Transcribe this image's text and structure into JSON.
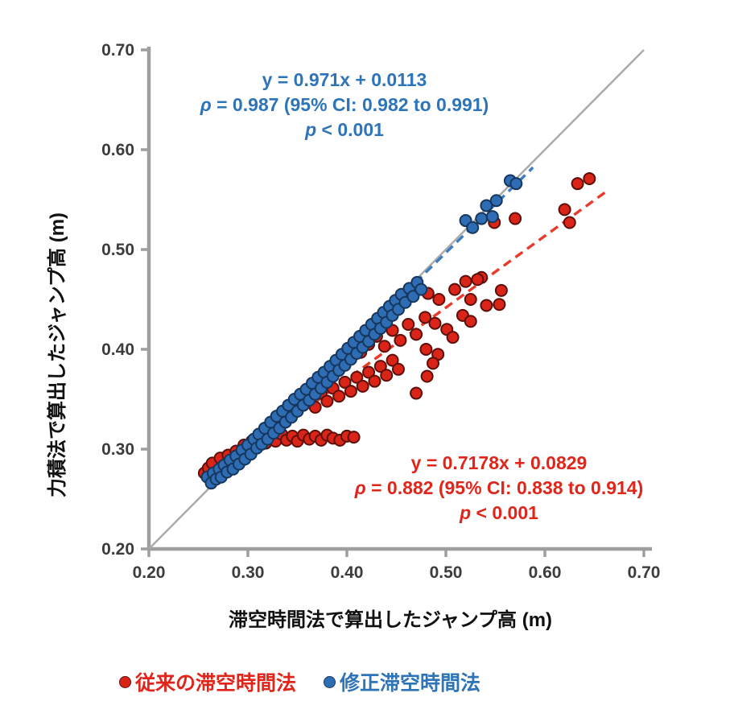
{
  "chart_data": {
    "type": "scatter",
    "title": "",
    "xlabel": "滞空時間法で算出したジャンプ高 (m)",
    "ylabel": "力積法で算出したジャンプ高 (m)",
    "xlim": [
      0.2,
      0.7
    ],
    "ylim": [
      0.2,
      0.7
    ],
    "x_tick_labels": [
      "0.20",
      "0.30",
      "0.40",
      "0.50",
      "0.60",
      "0.70"
    ],
    "y_tick_labels": [
      "0.20",
      "0.30",
      "0.40",
      "0.50",
      "0.60",
      "0.70"
    ],
    "grid": false,
    "legend_position": "bottom",
    "axis_color": "#9e9e9e",
    "tick_text_color": "#3c3c3c",
    "identity_line": {
      "from": [
        0.2,
        0.2
      ],
      "to": [
        0.7,
        0.7
      ],
      "color": "#ababab"
    },
    "annotations": {
      "blue": {
        "equation": "y = 0.971x + 0.0113",
        "rho_symbol": "ρ",
        "rho_rest": " = 0.987 (95% CI: 0.982 to 0.991)",
        "p_symbol": "p",
        "p_rest": " < 0.001",
        "color": "#2e74b8"
      },
      "red": {
        "equation": "y = 0.7178x + 0.0829",
        "rho_symbol": "ρ",
        "rho_rest": " = 0.882 (95% CI: 0.838 to 0.914)",
        "p_symbol": "p",
        "p_rest": " < 0.001",
        "color": "#e0251a"
      }
    },
    "series": [
      {
        "name": "従来の滞空時間法",
        "color": "#da2418",
        "edge_color": "#5c100a",
        "trend": {
          "slope": 0.7178,
          "intercept": 0.0829,
          "x_start": 0.262,
          "x_end": 0.663,
          "color": "#e8392a",
          "dashed": true
        },
        "points": [
          [
            0.256,
            0.276
          ],
          [
            0.26,
            0.281
          ],
          [
            0.264,
            0.286
          ],
          [
            0.268,
            0.277
          ],
          [
            0.272,
            0.291
          ],
          [
            0.276,
            0.284
          ],
          [
            0.28,
            0.294
          ],
          [
            0.284,
            0.287
          ],
          [
            0.288,
            0.298
          ],
          [
            0.292,
            0.291
          ],
          [
            0.296,
            0.304
          ],
          [
            0.3,
            0.296
          ],
          [
            0.304,
            0.308
          ],
          [
            0.308,
            0.301
          ],
          [
            0.313,
            0.311
          ],
          [
            0.318,
            0.306
          ],
          [
            0.323,
            0.313
          ],
          [
            0.328,
            0.308
          ],
          [
            0.334,
            0.315
          ],
          [
            0.339,
            0.309
          ],
          [
            0.345,
            0.313
          ],
          [
            0.35,
            0.308
          ],
          [
            0.356,
            0.314
          ],
          [
            0.362,
            0.31
          ],
          [
            0.368,
            0.313
          ],
          [
            0.374,
            0.309
          ],
          [
            0.38,
            0.314
          ],
          [
            0.386,
            0.311
          ],
          [
            0.393,
            0.309
          ],
          [
            0.4,
            0.313
          ],
          [
            0.407,
            0.312
          ],
          [
            0.335,
            0.326
          ],
          [
            0.342,
            0.332
          ],
          [
            0.349,
            0.338
          ],
          [
            0.356,
            0.344
          ],
          [
            0.362,
            0.351
          ],
          [
            0.368,
            0.342
          ],
          [
            0.374,
            0.356
          ],
          [
            0.38,
            0.348
          ],
          [
            0.386,
            0.361
          ],
          [
            0.392,
            0.353
          ],
          [
            0.398,
            0.367
          ],
          [
            0.404,
            0.358
          ],
          [
            0.41,
            0.372
          ],
          [
            0.416,
            0.363
          ],
          [
            0.422,
            0.377
          ],
          [
            0.428,
            0.368
          ],
          [
            0.434,
            0.383
          ],
          [
            0.44,
            0.374
          ],
          [
            0.446,
            0.389
          ],
          [
            0.452,
            0.38
          ],
          [
            0.414,
            0.397
          ],
          [
            0.422,
            0.405
          ],
          [
            0.43,
            0.413
          ],
          [
            0.438,
            0.403
          ],
          [
            0.446,
            0.419
          ],
          [
            0.454,
            0.409
          ],
          [
            0.462,
            0.425
          ],
          [
            0.47,
            0.415
          ],
          [
            0.479,
            0.432
          ],
          [
            0.489,
            0.426
          ],
          [
            0.48,
            0.4
          ],
          [
            0.492,
            0.395
          ],
          [
            0.501,
            0.42
          ],
          [
            0.507,
            0.412
          ],
          [
            0.517,
            0.434
          ],
          [
            0.525,
            0.428
          ],
          [
            0.482,
            0.456
          ],
          [
            0.493,
            0.45
          ],
          [
            0.509,
            0.46
          ],
          [
            0.525,
            0.45
          ],
          [
            0.536,
            0.472
          ],
          [
            0.541,
            0.444
          ],
          [
            0.554,
            0.445
          ],
          [
            0.487,
            0.386
          ],
          [
            0.481,
            0.373
          ],
          [
            0.47,
            0.356
          ],
          [
            0.52,
            0.468
          ],
          [
            0.532,
            0.47
          ],
          [
            0.556,
            0.459
          ],
          [
            0.549,
            0.527
          ],
          [
            0.57,
            0.531
          ],
          [
            0.62,
            0.54
          ],
          [
            0.625,
            0.527
          ],
          [
            0.633,
            0.566
          ],
          [
            0.645,
            0.571
          ]
        ]
      },
      {
        "name": "修正滞空時間法",
        "color": "#2e6db4",
        "edge_color": "#16365c",
        "trend": {
          "slope": 0.971,
          "intercept": 0.0113,
          "x_start": 0.26,
          "x_end": 0.588,
          "color": "#3d7cc0",
          "dashed": true
        },
        "points": [
          [
            0.259,
            0.272
          ],
          [
            0.263,
            0.266
          ],
          [
            0.265,
            0.276
          ],
          [
            0.268,
            0.27
          ],
          [
            0.271,
            0.28
          ],
          [
            0.273,
            0.272
          ],
          [
            0.276,
            0.284
          ],
          [
            0.279,
            0.277
          ],
          [
            0.282,
            0.289
          ],
          [
            0.285,
            0.28
          ],
          [
            0.288,
            0.293
          ],
          [
            0.291,
            0.285
          ],
          [
            0.294,
            0.299
          ],
          [
            0.297,
            0.29
          ],
          [
            0.3,
            0.304
          ],
          [
            0.303,
            0.295
          ],
          [
            0.306,
            0.31
          ],
          [
            0.309,
            0.301
          ],
          [
            0.311,
            0.315
          ],
          [
            0.314,
            0.305
          ],
          [
            0.317,
            0.321
          ],
          [
            0.32,
            0.31
          ],
          [
            0.323,
            0.327
          ],
          [
            0.326,
            0.316
          ],
          [
            0.329,
            0.333
          ],
          [
            0.332,
            0.321
          ],
          [
            0.335,
            0.338
          ],
          [
            0.338,
            0.327
          ],
          [
            0.341,
            0.344
          ],
          [
            0.344,
            0.332
          ],
          [
            0.347,
            0.35
          ],
          [
            0.35,
            0.338
          ],
          [
            0.353,
            0.355
          ],
          [
            0.356,
            0.344
          ],
          [
            0.359,
            0.36
          ],
          [
            0.362,
            0.349
          ],
          [
            0.365,
            0.366
          ],
          [
            0.368,
            0.355
          ],
          [
            0.371,
            0.372
          ],
          [
            0.374,
            0.361
          ],
          [
            0.377,
            0.377
          ],
          [
            0.38,
            0.367
          ],
          [
            0.383,
            0.383
          ],
          [
            0.386,
            0.373
          ],
          [
            0.389,
            0.389
          ],
          [
            0.392,
            0.379
          ],
          [
            0.395,
            0.395
          ],
          [
            0.398,
            0.384
          ],
          [
            0.401,
            0.401
          ],
          [
            0.404,
            0.39
          ],
          [
            0.407,
            0.407
          ],
          [
            0.41,
            0.396
          ],
          [
            0.413,
            0.413
          ],
          [
            0.416,
            0.402
          ],
          [
            0.419,
            0.419
          ],
          [
            0.422,
            0.408
          ],
          [
            0.425,
            0.425
          ],
          [
            0.428,
            0.415
          ],
          [
            0.431,
            0.431
          ],
          [
            0.434,
            0.421
          ],
          [
            0.437,
            0.437
          ],
          [
            0.44,
            0.427
          ],
          [
            0.443,
            0.443
          ],
          [
            0.446,
            0.434
          ],
          [
            0.449,
            0.449
          ],
          [
            0.452,
            0.44
          ],
          [
            0.455,
            0.455
          ],
          [
            0.459,
            0.447
          ],
          [
            0.463,
            0.461
          ],
          [
            0.467,
            0.453
          ],
          [
            0.471,
            0.467
          ],
          [
            0.475,
            0.46
          ],
          [
            0.52,
            0.529
          ],
          [
            0.527,
            0.522
          ],
          [
            0.536,
            0.531
          ],
          [
            0.541,
            0.544
          ],
          [
            0.547,
            0.533
          ],
          [
            0.551,
            0.549
          ],
          [
            0.565,
            0.569
          ],
          [
            0.571,
            0.566
          ]
        ]
      }
    ]
  }
}
